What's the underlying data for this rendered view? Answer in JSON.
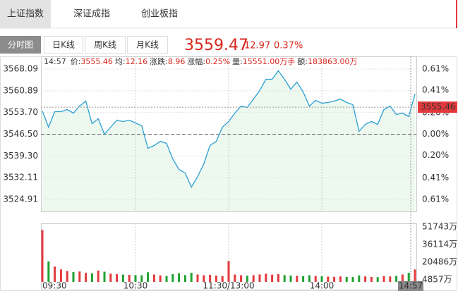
{
  "tabs": [
    "上证指数",
    "深证成指",
    "创业板指"
  ],
  "subtabs": [
    "分时图",
    "日K线",
    "周K线",
    "月K线"
  ],
  "quote": {
    "price": "3559.47",
    "change": "12.97",
    "percent": "0.37%"
  },
  "info": {
    "time": "14:57",
    "items": [
      {
        "label": "价:",
        "value": "3555.46"
      },
      {
        "label": "均:",
        "value": "12.16"
      },
      {
        "label": "涨跌:",
        "value": "8.96"
      },
      {
        "label": "涨幅:",
        "value": "0.25%"
      },
      {
        "label": "量:",
        "value": "15551.00万手"
      },
      {
        "label": "额:",
        "value": "183863.00万"
      }
    ]
  },
  "chart_data": [
    {
      "type": "line",
      "color": "#2a9fd6",
      "fill": "#edf8ee",
      "baseline": 3546.5,
      "values": [
        3554.21,
        3548.84,
        3553.98,
        3553.98,
        3554.68,
        3553.51,
        3555.84,
        3557.48,
        3550.0,
        3551.64,
        3546.5,
        3548.84,
        3551.17,
        3550.7,
        3551.17,
        3550.24,
        3549.3,
        3541.83,
        3542.76,
        3544.16,
        3543.46,
        3538.32,
        3534.82,
        3533.65,
        3528.98,
        3532.48,
        3536.69,
        3542.76,
        3544.16,
        3548.84,
        3550.7,
        3553.51,
        3555.84,
        3555.38,
        3558.18,
        3560.98,
        3564.72,
        3564.72,
        3567.52,
        3564.72,
        3561.45,
        3563.79,
        3560.52,
        3555.84,
        3557.71,
        3556.78,
        3557.01,
        3557.48,
        3558.18,
        3557.01,
        3556.31,
        3547.43,
        3549.77,
        3550.7,
        3549.77,
        3554.68,
        3555.84,
        3553.04,
        3553.51,
        3552.34,
        3559.82
      ],
      "ylim": [
        3520.94,
        3572.3
      ],
      "yticks": [
        3568.09,
        3560.89,
        {
          "value": 3553.7,
          "label": "3553.70"
        },
        {
          "value": 3546.5,
          "label": "3546.50"
        },
        {
          "value": 3539.3,
          "label": "3539.30"
        },
        3532.11,
        3524.91
      ],
      "y2lim": [
        -0.723,
        0.727
      ],
      "y2ticks": [
        {
          "value": 0.61,
          "label": "0.61%"
        },
        {
          "value": 0.41,
          "label": "0.41%"
        },
        {
          "value": 0.2,
          "label": "0.20%"
        },
        {
          "value": 0,
          "label": "0.00%"
        },
        {
          "value": -0.2,
          "label": "0.20%"
        },
        {
          "value": -0.41,
          "label": "0.41%"
        },
        {
          "value": -0.61,
          "label": "0.61%"
        }
      ],
      "cursor": {
        "value": 3555.46,
        "label": "3555.46",
        "time": "14:57"
      },
      "grid": true
    },
    {
      "type": "bar",
      "up_color": "#e4393c",
      "down_color": "#21a031",
      "categories": [
        "09:30",
        null,
        null,
        null,
        null,
        null,
        null,
        null,
        null,
        null,
        null,
        null,
        null,
        null,
        null,
        "10:30",
        null,
        null,
        null,
        null,
        null,
        null,
        null,
        null,
        null,
        null,
        null,
        null,
        null,
        null,
        "11:30/13:00",
        null,
        null,
        null,
        null,
        null,
        null,
        null,
        null,
        null,
        null,
        null,
        null,
        null,
        null,
        "14:00",
        null,
        null,
        null,
        null,
        null,
        null,
        null,
        null,
        null,
        null,
        null,
        null,
        null,
        null,
        null
      ],
      "values": [
        49000,
        21000,
        16500,
        14000,
        12500,
        11800,
        12200,
        11000,
        10500,
        13000,
        12000,
        10200,
        9800,
        9500,
        9200,
        9000,
        8800,
        11500,
        9500,
        8700,
        8200,
        9800,
        10500,
        9000,
        11000,
        9500,
        8800,
        9200,
        8500,
        8000,
        21500,
        9500,
        8800,
        8400,
        9000,
        9600,
        10200,
        9400,
        9800,
        9000,
        8600,
        8300,
        8000,
        8800,
        8200,
        7900,
        7600,
        7500,
        7800,
        7400,
        7300,
        8600,
        7800,
        7400,
        7200,
        8000,
        7800,
        8200,
        9500,
        11000,
        14000
      ],
      "ylim": [
        2982,
        54244
      ],
      "yticks": [
        {
          "value": 51743,
          "label": "51743万"
        },
        {
          "value": 36114,
          "label": "36114万"
        },
        {
          "value": 20486,
          "label": "20486万"
        },
        {
          "value": 4857,
          "label": "4857万"
        }
      ]
    }
  ]
}
